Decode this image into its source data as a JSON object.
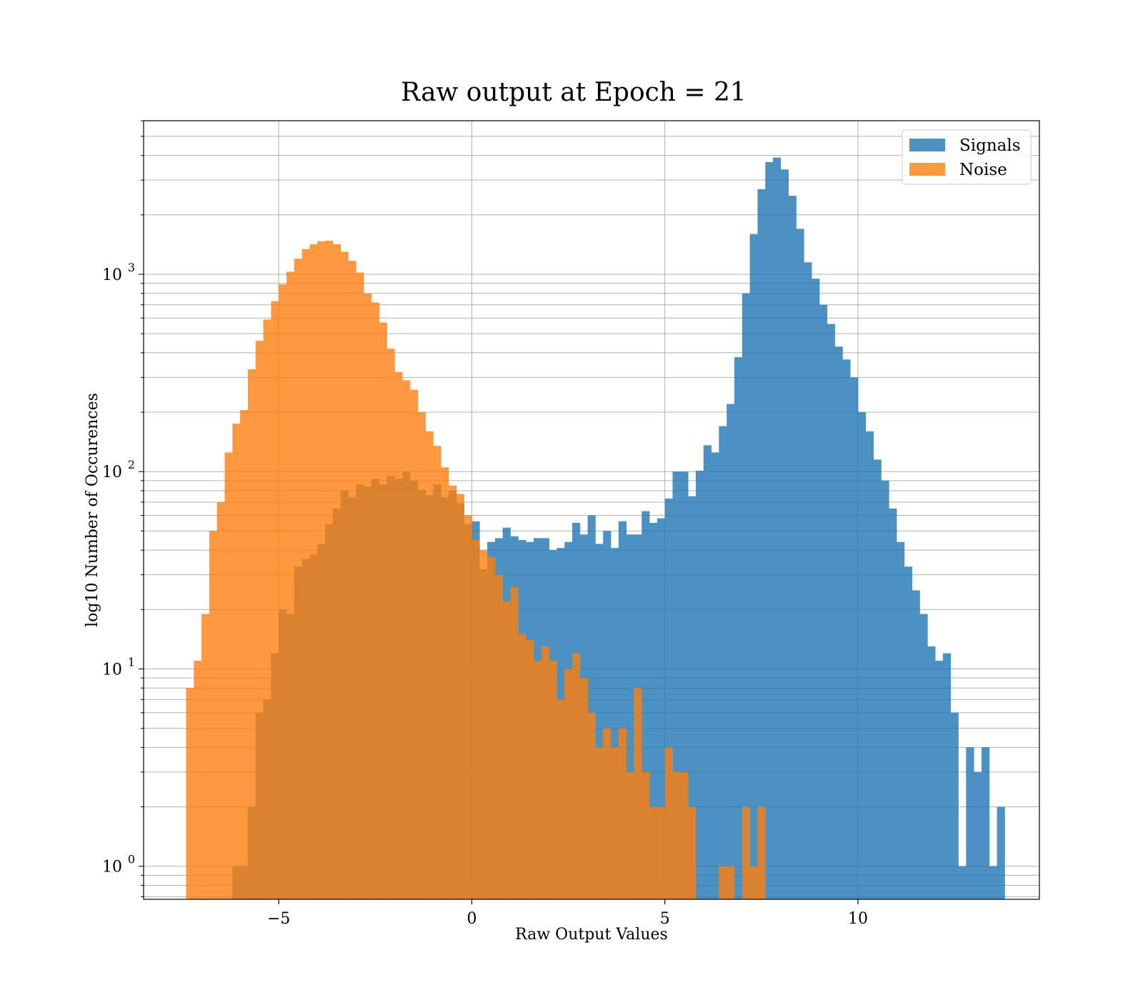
{
  "chart_data": {
    "type": "bar",
    "title": "Raw output at Epoch = 21",
    "xlabel": "Raw Output Values",
    "ylabel": "log10 Number of Occurences",
    "xlim": [
      -8.5,
      14.7
    ],
    "ylim": [
      0.68,
      6000
    ],
    "y_scale": "log",
    "grid": true,
    "legend_position": "top-right",
    "bin_width": 0.2,
    "x_ticks": [
      {
        "value": -5,
        "label": "−5"
      },
      {
        "value": 0,
        "label": "0"
      },
      {
        "value": 5,
        "label": "5"
      },
      {
        "value": 10,
        "label": "10"
      }
    ],
    "y_ticks": [
      {
        "value": 1,
        "base": "10",
        "exp": "0"
      },
      {
        "value": 10,
        "base": "10",
        "exp": "1"
      },
      {
        "value": 100,
        "base": "10",
        "exp": "2"
      },
      {
        "value": 1000,
        "base": "10",
        "exp": "3"
      }
    ],
    "series": [
      {
        "name": "Signals",
        "color": "#1f77b4",
        "opacity": 0.8,
        "bins": [
          [
            -6.2,
            1
          ],
          [
            -6.0,
            1
          ],
          [
            -5.8,
            2
          ],
          [
            -5.6,
            6
          ],
          [
            -5.4,
            7
          ],
          [
            -5.2,
            12
          ],
          [
            -5.0,
            20
          ],
          [
            -4.8,
            19
          ],
          [
            -4.6,
            33
          ],
          [
            -4.4,
            36
          ],
          [
            -4.2,
            38
          ],
          [
            -4.0,
            43
          ],
          [
            -3.8,
            54
          ],
          [
            -3.6,
            65
          ],
          [
            -3.4,
            80
          ],
          [
            -3.2,
            74
          ],
          [
            -3.0,
            86
          ],
          [
            -2.8,
            84
          ],
          [
            -2.6,
            92
          ],
          [
            -2.4,
            86
          ],
          [
            -2.2,
            95
          ],
          [
            -2.0,
            92
          ],
          [
            -1.8,
            100
          ],
          [
            -1.6,
            90
          ],
          [
            -1.4,
            81
          ],
          [
            -1.2,
            76
          ],
          [
            -1.0,
            86
          ],
          [
            -0.8,
            74
          ],
          [
            -0.6,
            80
          ],
          [
            -0.4,
            69
          ],
          [
            -0.2,
            54
          ],
          [
            0.0,
            56
          ],
          [
            0.2,
            32
          ],
          [
            0.4,
            44
          ],
          [
            0.6,
            46
          ],
          [
            0.8,
            52
          ],
          [
            1.0,
            47
          ],
          [
            1.2,
            45
          ],
          [
            1.4,
            44
          ],
          [
            1.6,
            46
          ],
          [
            1.8,
            46
          ],
          [
            2.0,
            40
          ],
          [
            2.2,
            41
          ],
          [
            2.4,
            44
          ],
          [
            2.6,
            55
          ],
          [
            2.8,
            48
          ],
          [
            3.0,
            60
          ],
          [
            3.2,
            43
          ],
          [
            3.4,
            50
          ],
          [
            3.6,
            41
          ],
          [
            3.8,
            56
          ],
          [
            4.0,
            48
          ],
          [
            4.2,
            48
          ],
          [
            4.4,
            63
          ],
          [
            4.6,
            55
          ],
          [
            4.8,
            58
          ],
          [
            5.0,
            73
          ],
          [
            5.2,
            100
          ],
          [
            5.4,
            100
          ],
          [
            5.6,
            75
          ],
          [
            5.8,
            101
          ],
          [
            6.0,
            136
          ],
          [
            6.2,
            125
          ],
          [
            6.4,
            170
          ],
          [
            6.6,
            220
          ],
          [
            6.8,
            380
          ],
          [
            7.0,
            800
          ],
          [
            7.2,
            1600
          ],
          [
            7.4,
            2700
          ],
          [
            7.6,
            3700
          ],
          [
            7.8,
            3900
          ],
          [
            8.0,
            3400
          ],
          [
            8.2,
            2500
          ],
          [
            8.4,
            1700
          ],
          [
            8.6,
            1150
          ],
          [
            8.8,
            950
          ],
          [
            9.0,
            700
          ],
          [
            9.2,
            560
          ],
          [
            9.4,
            430
          ],
          [
            9.6,
            370
          ],
          [
            9.8,
            300
          ],
          [
            10.0,
            200
          ],
          [
            10.2,
            160
          ],
          [
            10.4,
            115
          ],
          [
            10.6,
            90
          ],
          [
            10.8,
            65
          ],
          [
            11.0,
            44
          ],
          [
            11.2,
            33
          ],
          [
            11.4,
            25
          ],
          [
            11.6,
            19
          ],
          [
            11.8,
            13
          ],
          [
            12.0,
            11
          ],
          [
            12.2,
            12
          ],
          [
            12.4,
            6
          ],
          [
            12.6,
            1
          ],
          [
            12.8,
            4
          ],
          [
            13.0,
            3
          ],
          [
            13.2,
            4
          ],
          [
            13.4,
            1
          ],
          [
            13.6,
            2
          ]
        ]
      },
      {
        "name": "Noise",
        "color": "#ff7f0e",
        "opacity": 0.8,
        "bins": [
          [
            -7.4,
            8
          ],
          [
            -7.2,
            11
          ],
          [
            -7.0,
            19
          ],
          [
            -6.8,
            50
          ],
          [
            -6.6,
            70
          ],
          [
            -6.4,
            125
          ],
          [
            -6.2,
            175
          ],
          [
            -6.0,
            205
          ],
          [
            -5.8,
            330
          ],
          [
            -5.6,
            460
          ],
          [
            -5.4,
            590
          ],
          [
            -5.2,
            730
          ],
          [
            -5.0,
            890
          ],
          [
            -4.8,
            1030
          ],
          [
            -4.6,
            1200
          ],
          [
            -4.4,
            1340
          ],
          [
            -4.2,
            1420
          ],
          [
            -4.0,
            1470
          ],
          [
            -3.8,
            1480
          ],
          [
            -3.6,
            1420
          ],
          [
            -3.4,
            1300
          ],
          [
            -3.2,
            1170
          ],
          [
            -3.0,
            1020
          ],
          [
            -2.8,
            800
          ],
          [
            -2.6,
            720
          ],
          [
            -2.4,
            570
          ],
          [
            -2.2,
            420
          ],
          [
            -2.0,
            320
          ],
          [
            -1.8,
            290
          ],
          [
            -1.6,
            260
          ],
          [
            -1.4,
            200
          ],
          [
            -1.2,
            160
          ],
          [
            -1.0,
            135
          ],
          [
            -0.8,
            105
          ],
          [
            -0.6,
            85
          ],
          [
            -0.4,
            77
          ],
          [
            -0.2,
            60
          ],
          [
            0.0,
            45
          ],
          [
            0.2,
            40
          ],
          [
            0.4,
            37
          ],
          [
            0.6,
            30
          ],
          [
            0.8,
            22
          ],
          [
            1.0,
            26
          ],
          [
            1.2,
            15
          ],
          [
            1.4,
            14
          ],
          [
            1.6,
            11
          ],
          [
            1.8,
            13
          ],
          [
            2.0,
            11
          ],
          [
            2.2,
            7
          ],
          [
            2.4,
            10
          ],
          [
            2.6,
            12
          ],
          [
            2.8,
            9
          ],
          [
            3.0,
            6
          ],
          [
            3.2,
            4
          ],
          [
            3.4,
            5
          ],
          [
            3.6,
            4
          ],
          [
            3.8,
            5
          ],
          [
            4.0,
            3
          ],
          [
            4.2,
            8
          ],
          [
            4.4,
            3
          ],
          [
            4.6,
            2
          ],
          [
            4.8,
            2
          ],
          [
            5.0,
            4
          ],
          [
            5.2,
            3
          ],
          [
            5.4,
            3
          ],
          [
            5.6,
            2
          ],
          [
            5.8,
            0.1
          ],
          [
            6.0,
            0.1
          ],
          [
            6.2,
            0.1
          ],
          [
            6.4,
            1
          ],
          [
            6.6,
            1
          ],
          [
            6.8,
            0.1
          ],
          [
            7.0,
            2
          ],
          [
            7.2,
            1
          ],
          [
            7.4,
            2
          ]
        ]
      }
    ]
  }
}
